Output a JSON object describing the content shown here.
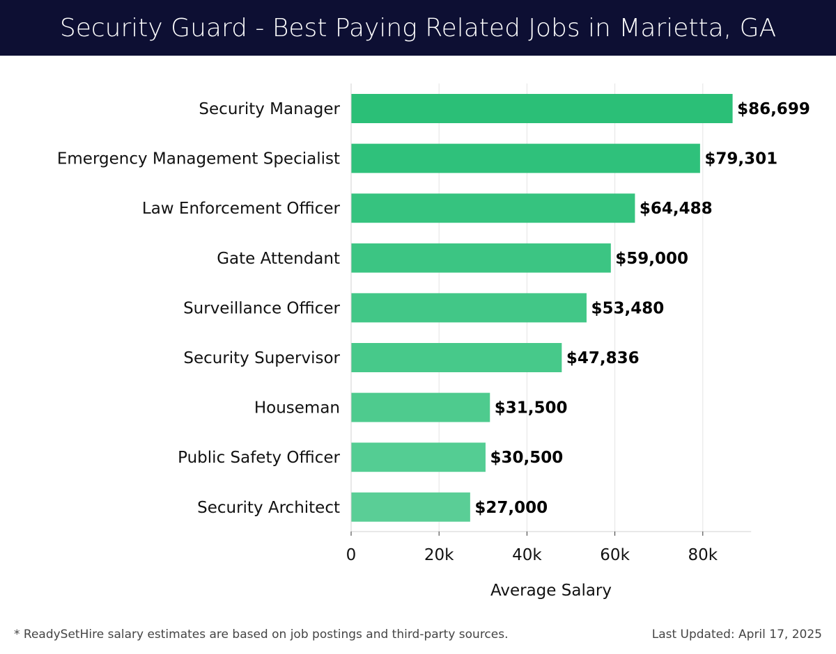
{
  "header": {
    "title": "Security Guard - Best Paying Related Jobs in Marietta, GA"
  },
  "chart_data": {
    "type": "bar",
    "orientation": "horizontal",
    "title": "Security Guard - Best Paying Related Jobs in Marietta, GA",
    "xlabel": "Average Salary",
    "ylabel": "",
    "xlim": [
      0,
      91000
    ],
    "grid": true,
    "x_ticks": [
      0,
      20000,
      40000,
      60000,
      80000
    ],
    "x_tick_labels": [
      "0",
      "20k",
      "40k",
      "60k",
      "80k"
    ],
    "categories": [
      "Security Manager",
      "Emergency Management Specialist",
      "Law Enforcement Officer",
      "Gate Attendant",
      "Surveillance Officer",
      "Security Supervisor",
      "Houseman",
      "Public Safety Officer",
      "Security Architect"
    ],
    "values": [
      86699,
      79301,
      64488,
      59000,
      53480,
      47836,
      31500,
      30500,
      27000
    ],
    "value_labels": [
      "$86,699",
      "$79,301",
      "$64,488",
      "$59,000",
      "$53,480",
      "$47,836",
      "$31,500",
      "$30,500",
      "$27,000"
    ],
    "bar_colors": [
      "#2bbf77",
      "#2fc17b",
      "#36c37f",
      "#3cc583",
      "#42c787",
      "#47c98a",
      "#4ecb8e",
      "#54cd93",
      "#5ace96"
    ]
  },
  "footer": {
    "note": "* ReadySetHire salary estimates are based on job postings and third-party sources.",
    "updated": "Last Updated: April 17, 2025"
  }
}
